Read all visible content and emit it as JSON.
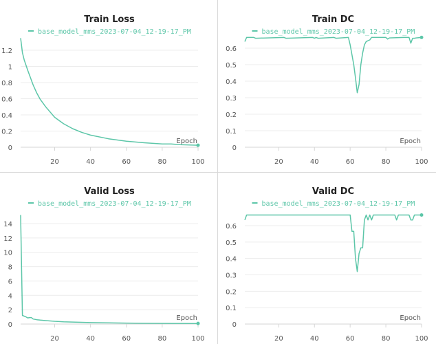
{
  "colors": {
    "series": "#5cc6a8",
    "grid": "#ececec",
    "axis": "#d6d6d6",
    "text": "#555555",
    "title": "#222222"
  },
  "chart_data": [
    {
      "type": "line",
      "title": "Train Loss",
      "xlabel": "Epoch",
      "xlim": [
        1,
        100
      ],
      "ylim": [
        0,
        1.35
      ],
      "xticks": [
        20,
        40,
        60,
        80,
        100
      ],
      "yticks": [
        0,
        0.2,
        0.4,
        0.6,
        0.8,
        1,
        1.2
      ],
      "ytick_labels": [
        "0",
        "0.2",
        "0.4",
        "0.6",
        "0.8",
        "1",
        "1.2"
      ],
      "grid": true,
      "legend": "top",
      "series": [
        {
          "name": "base_model_mms_2023-07-04_12-19-17_PM",
          "x": [
            1,
            2,
            3,
            5,
            8,
            10,
            12,
            15,
            20,
            25,
            30,
            35,
            40,
            50,
            60,
            70,
            80,
            85,
            90,
            100
          ],
          "y": [
            1.35,
            1.17,
            1.08,
            0.95,
            0.77,
            0.67,
            0.59,
            0.5,
            0.37,
            0.29,
            0.23,
            0.185,
            0.15,
            0.105,
            0.075,
            0.055,
            0.04,
            0.04,
            0.032,
            0.025
          ]
        }
      ]
    },
    {
      "type": "line",
      "title": "Train DC",
      "xlabel": "Epoch",
      "xlim": [
        1,
        100
      ],
      "ylim": [
        0,
        0.665
      ],
      "xticks": [
        20,
        40,
        60,
        80,
        100
      ],
      "yticks": [
        0,
        0.1,
        0.2,
        0.3,
        0.4,
        0.5,
        0.6
      ],
      "ytick_labels": [
        "0",
        "0.1",
        "0.2",
        "0.3",
        "0.4",
        "0.5",
        "0.6"
      ],
      "grid": true,
      "legend": "top",
      "series": [
        {
          "name": "base_model_mms_2023-07-04_12-19-17_PM",
          "x": [
            1,
            2,
            6,
            7,
            23,
            24,
            39,
            40,
            41,
            42,
            51,
            52,
            59,
            60,
            61,
            62,
            63,
            64,
            65,
            66,
            67,
            68,
            69,
            70,
            71,
            72,
            80,
            81,
            82,
            90,
            93,
            94,
            95,
            96,
            97,
            100
          ],
          "y": [
            0.64,
            0.665,
            0.665,
            0.66,
            0.665,
            0.66,
            0.665,
            0.66,
            0.665,
            0.66,
            0.665,
            0.66,
            0.665,
            0.62,
            0.56,
            0.5,
            0.42,
            0.33,
            0.38,
            0.5,
            0.57,
            0.62,
            0.64,
            0.645,
            0.65,
            0.665,
            0.665,
            0.655,
            0.662,
            0.665,
            0.665,
            0.63,
            0.66,
            0.66,
            0.662,
            0.665
          ]
        }
      ]
    },
    {
      "type": "line",
      "title": "Valid Loss",
      "xlabel": "Epoch",
      "xlim": [
        1,
        100
      ],
      "ylim": [
        0,
        15.2
      ],
      "xticks": [
        20,
        40,
        60,
        80,
        100
      ],
      "yticks": [
        0,
        2,
        4,
        6,
        8,
        10,
        12,
        14
      ],
      "ytick_labels": [
        "0",
        "2",
        "4",
        "6",
        "8",
        "10",
        "12",
        "14"
      ],
      "grid": true,
      "legend": "top",
      "series": [
        {
          "name": "base_model_mms_2023-07-04_12-19-17_PM",
          "x": [
            1,
            2,
            4,
            5,
            6,
            7,
            8,
            10,
            12,
            15,
            20,
            25,
            30,
            40,
            50,
            60,
            70,
            80,
            90,
            100
          ],
          "y": [
            15.2,
            1.2,
            1.0,
            0.85,
            0.9,
            0.9,
            0.7,
            0.6,
            0.55,
            0.48,
            0.38,
            0.32,
            0.28,
            0.2,
            0.16,
            0.13,
            0.11,
            0.1,
            0.09,
            0.08
          ]
        }
      ]
    },
    {
      "type": "line",
      "title": "Valid DC",
      "xlabel": "Epoch",
      "xlim": [
        1,
        100
      ],
      "ylim": [
        0,
        0.665
      ],
      "xticks": [
        20,
        40,
        60,
        80,
        100
      ],
      "yticks": [
        0,
        0.1,
        0.2,
        0.3,
        0.4,
        0.5,
        0.6
      ],
      "ytick_labels": [
        "0",
        "0.1",
        "0.2",
        "0.3",
        "0.4",
        "0.5",
        "0.6"
      ],
      "grid": true,
      "legend": "top",
      "series": [
        {
          "name": "base_model_mms_2023-07-04_12-19-17_PM",
          "x": [
            1,
            2,
            60,
            61,
            62,
            63,
            64,
            65,
            66,
            67,
            68,
            69,
            70,
            71,
            72,
            73,
            85,
            86,
            87,
            93,
            94,
            95,
            96,
            100
          ],
          "y": [
            0.635,
            0.665,
            0.665,
            0.565,
            0.565,
            0.4,
            0.32,
            0.43,
            0.465,
            0.465,
            0.635,
            0.665,
            0.635,
            0.665,
            0.635,
            0.665,
            0.665,
            0.635,
            0.665,
            0.665,
            0.635,
            0.635,
            0.665,
            0.665
          ]
        }
      ]
    }
  ]
}
